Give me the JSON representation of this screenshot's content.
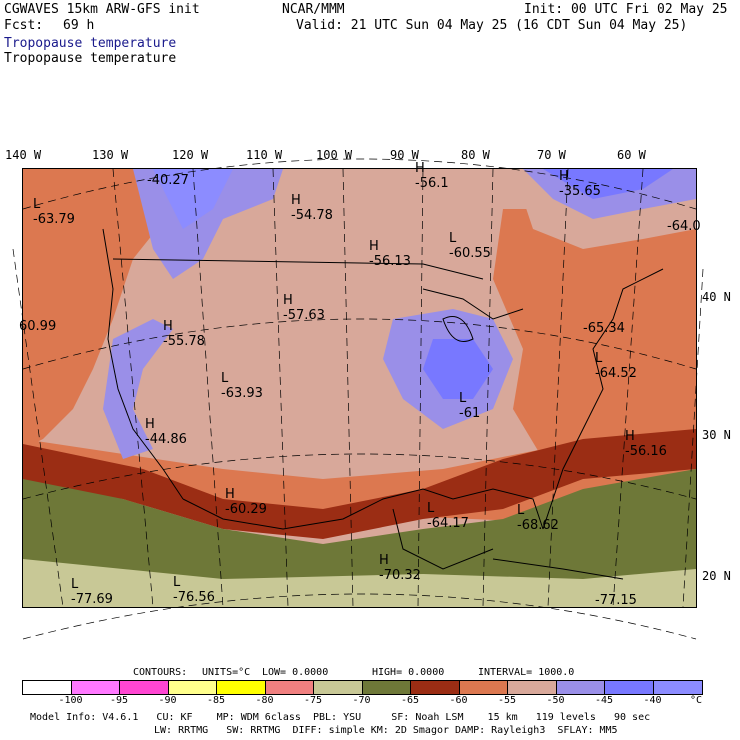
{
  "header": {
    "model_title": "CGWAVES 15km ARW-GFS init",
    "forecast_label": "Fcst:",
    "forecast_hours": "69 h",
    "org": "NCAR/MMM",
    "init_label": "Init: 00 UTC Fri 02 May 25",
    "valid_label": "Valid: 21 UTC Sun 04 May 25 (16 CDT Sun 04 May 25)",
    "field_name_color": "Tropopause temperature",
    "field_name": "Tropopause temperature"
  },
  "longitude_labels": [
    "140 W",
    "130 W",
    "120 W",
    "110 W",
    "100 W",
    "90 W",
    "80 W",
    "70 W",
    "60 W"
  ],
  "latitude_labels": [
    "40 N",
    "30 N",
    "20 N"
  ],
  "map_labels": [
    {
      "letter": "H",
      "value": "-40.27"
    },
    {
      "letter": "L",
      "value": "-63.79"
    },
    {
      "letter": "H",
      "value": "-54.78"
    },
    {
      "letter": "H",
      "value": "-56.1"
    },
    {
      "letter": "H",
      "value": "-35.65"
    },
    {
      "letter": "H",
      "value": "-56.13"
    },
    {
      "letter": "L",
      "value": "-60.55"
    },
    {
      "letter": "",
      "value": "-64.0"
    },
    {
      "letter": "H",
      "value": "-57.63"
    },
    {
      "letter": "",
      "value": "60.99"
    },
    {
      "letter": "H",
      "value": "-55.78"
    },
    {
      "letter": "",
      "value": "-65.34"
    },
    {
      "letter": "L",
      "value": "-64.52"
    },
    {
      "letter": "L",
      "value": "-63.93"
    },
    {
      "letter": "L",
      "value": "-61"
    },
    {
      "letter": "H",
      "value": "-44.86"
    },
    {
      "letter": "H",
      "value": "-56.16"
    },
    {
      "letter": "H",
      "value": "-60.29"
    },
    {
      "letter": "L",
      "value": "-64.17"
    },
    {
      "letter": "L",
      "value": "-68.62"
    },
    {
      "letter": "H",
      "value": "-70.32"
    },
    {
      "letter": "L",
      "value": "-77.69"
    },
    {
      "letter": "L",
      "value": "-76.56"
    },
    {
      "letter": "",
      "value": "-77.15"
    }
  ],
  "contours": {
    "label": "CONTOURS:",
    "units": "UNITS=°C",
    "low": "LOW= 0.0000",
    "high": "HIGH= 0.0000",
    "interval": "INTERVAL= 1000.0"
  },
  "colorbar": {
    "colors": [
      "#ffffff",
      "#ff78ff",
      "#ff46d2",
      "#ffff8c",
      "#ffff00",
      "#f08080",
      "#c8c896",
      "#6e7838",
      "#9b2d14",
      "#dc7850",
      "#d8a89a",
      "#9a8fe8",
      "#7878ff",
      "#8c8cff"
    ],
    "ticks": [
      "-100",
      "-95",
      "-90",
      "-85",
      "-80",
      "-75",
      "-70",
      "-65",
      "-60",
      "-55",
      "-50",
      "-45",
      "-40"
    ],
    "unit": "°C"
  },
  "footer": {
    "line1": "Model Info: V4.6.1   CU: KF    MP: WDM 6class  PBL: YSU     SF: Noah LSM    15 km   119 levels   90 sec",
    "line2": "LW: RRTMG   SW: RRTMG  DIFF: simple KM: 2D Smagor DAMP: Rayleigh3  SFLAY: MM5"
  }
}
